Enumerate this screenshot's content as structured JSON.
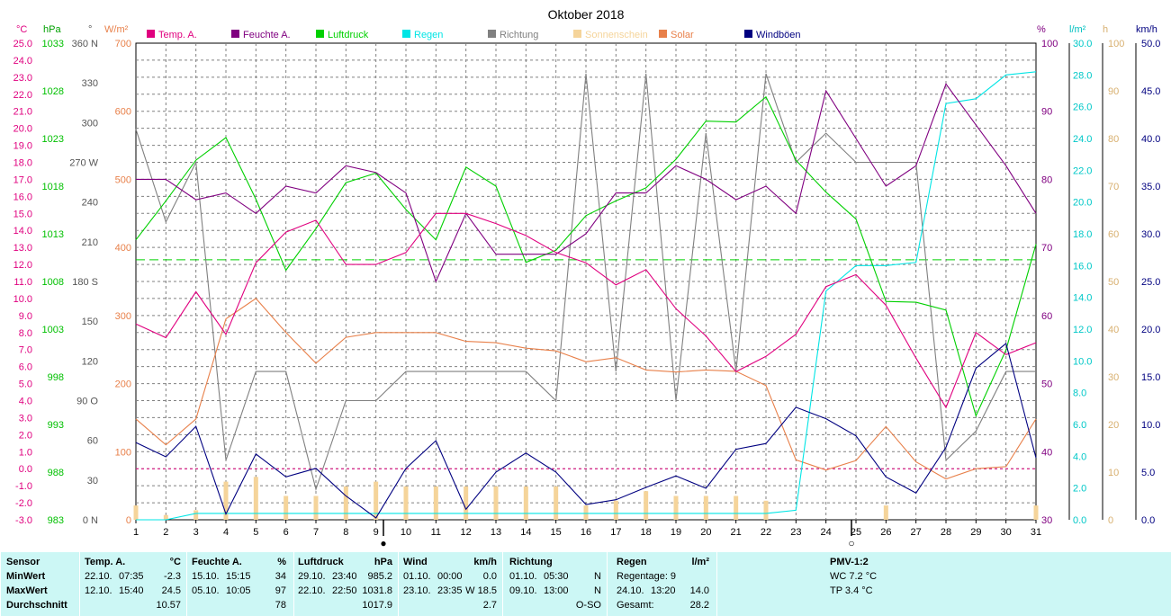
{
  "title": "Oktober 2018",
  "units": {
    "temp": "°C",
    "hpa": "hPa",
    "deg": "°",
    "wm2": "W/m²",
    "pct": "%",
    "lm2": "l/m²",
    "h": "h",
    "kmh": "km/h"
  },
  "legend": [
    {
      "label": "Temp. A.",
      "color": "#e0007f"
    },
    {
      "label": "Feuchte A.",
      "color": "#800080"
    },
    {
      "label": "Luftdruck",
      "color": "#00d000"
    },
    {
      "label": "Regen",
      "color": "#00e5e5"
    },
    {
      "label": "Richtung",
      "color": "#808080"
    },
    {
      "label": "Sonnenschein",
      "color": "#f5d49a"
    },
    {
      "label": "Solar",
      "color": "#e8804a"
    },
    {
      "label": "Windböen",
      "color": "#000080"
    }
  ],
  "colors": {
    "grid": "#808080",
    "axis": "#000000",
    "temp": "#e0007f",
    "humid": "#800080",
    "press": "#00d000",
    "rain": "#00e5e5",
    "dir": "#808080",
    "sun": "#f5d49a",
    "solar": "#e8804a",
    "wind": "#000080"
  },
  "chart_data": {
    "type": "line",
    "x": [
      1,
      2,
      3,
      4,
      5,
      6,
      7,
      8,
      9,
      10,
      11,
      12,
      13,
      14,
      15,
      16,
      17,
      18,
      19,
      20,
      21,
      22,
      23,
      24,
      25,
      26,
      27,
      28,
      29,
      30,
      31
    ],
    "x_ticks": [
      "1",
      "2",
      "3",
      "4",
      "5",
      "6",
      "7",
      "8",
      "9",
      "10",
      "11",
      "12",
      "13",
      "14",
      "15",
      "16",
      "17",
      "18",
      "19",
      "20",
      "21",
      "22",
      "23",
      "24",
      "25",
      "26",
      "27",
      "28",
      "29",
      "30",
      "31"
    ],
    "axes": {
      "temp": {
        "min": -3,
        "max": 25,
        "ticks": [
          "-3.0",
          "-2.0",
          "-1.0",
          "0.0",
          "1.0",
          "2.0",
          "3.0",
          "4.0",
          "5.0",
          "6.0",
          "7.0",
          "8.0",
          "9.0",
          "10.0",
          "11.0",
          "12.0",
          "13.0",
          "14.0",
          "15.0",
          "16.0",
          "17.0",
          "18.0",
          "19.0",
          "20.0",
          "21.0",
          "22.0",
          "23.0",
          "24.0",
          "25.0"
        ]
      },
      "press": {
        "min": 983,
        "max": 1038,
        "ticks": [
          "983",
          "988",
          "993",
          "998",
          "1003",
          "1008",
          "1013",
          "1018",
          "1023",
          "1028",
          "1033"
        ]
      },
      "dir": {
        "min": 0,
        "max": 360,
        "ticks": [
          "0 N",
          "30",
          "60",
          "90 O",
          "120",
          "150",
          "180 S",
          "210",
          "240",
          "270 W",
          "300",
          "330",
          "360 N"
        ]
      },
      "solar": {
        "min": 0,
        "max": 700,
        "ticks": [
          "0",
          "100",
          "200",
          "300",
          "400",
          "500",
          "600",
          "700"
        ]
      },
      "humid": {
        "min": 30,
        "max": 100,
        "ticks": [
          "30",
          "40",
          "50",
          "60",
          "70",
          "80",
          "90",
          "100"
        ]
      },
      "rain": {
        "min": 0,
        "max": 30,
        "ticks": [
          "0.0",
          "2.0",
          "4.0",
          "6.0",
          "8.0",
          "10.0",
          "12.0",
          "14.0",
          "16.0",
          "18.0",
          "20.0",
          "22.0",
          "24.0",
          "26.0",
          "28.0",
          "30.0"
        ]
      },
      "sun": {
        "min": 0,
        "max": 100,
        "ticks": [
          "0",
          "10",
          "20",
          "30",
          "40",
          "50",
          "60",
          "70",
          "80",
          "90",
          "100"
        ]
      },
      "wind": {
        "min": 0,
        "max": 50,
        "ticks": [
          "0.0",
          "5.0",
          "10.0",
          "15.0",
          "20.0",
          "25.0",
          "30.0",
          "35.0",
          "40.0",
          "45.0",
          "50.0"
        ]
      }
    },
    "series": [
      {
        "name": "Temp. A.",
        "axis": "temp",
        "values": [
          8.5,
          7.7,
          10.4,
          7.9,
          12.1,
          13.9,
          14.6,
          12.0,
          12.0,
          12.7,
          15.0,
          15.0,
          14.4,
          13.7,
          12.7,
          12.1,
          10.8,
          11.7,
          9.4,
          7.8,
          5.7,
          6.6,
          7.9,
          10.7,
          11.4,
          9.6,
          6.5,
          3.6,
          8.0,
          6.7,
          7.4
        ]
      },
      {
        "name": "Feuchte A.",
        "axis": "humid",
        "values": [
          80,
          80,
          77,
          78,
          75,
          79,
          78,
          82,
          81,
          78,
          65,
          75,
          69,
          69,
          69,
          72,
          78,
          78,
          82,
          80,
          77,
          79,
          75,
          93,
          86,
          79,
          82,
          94,
          88,
          82,
          75
        ]
      },
      {
        "name": "Luftdruck",
        "axis": "press",
        "values": [
          1015.3,
          1019.8,
          1024.5,
          1027.1,
          1020.0,
          1011.8,
          1016.6,
          1021.9,
          1023.0,
          1018.8,
          1015.3,
          1023.7,
          1021.5,
          1012.7,
          1014.1,
          1018.1,
          1019.8,
          1021.3,
          1024.6,
          1029.0,
          1028.9,
          1031.8,
          1024.5,
          1020.8,
          1017.7,
          1008.2,
          1008.1,
          1007.2,
          995.0,
          1002.6,
          1014.8
        ]
      },
      {
        "name": "Regen",
        "axis": "rain",
        "values": [
          0,
          0,
          0.4,
          0.4,
          0.4,
          0.4,
          0.4,
          0.4,
          0.4,
          0.4,
          0.4,
          0.4,
          0.4,
          0.4,
          0.4,
          0.4,
          0.4,
          0.4,
          0.4,
          0.4,
          0.4,
          0.4,
          0.6,
          14.4,
          16.0,
          16.0,
          16.2,
          26.2,
          26.5,
          28.0,
          28.2
        ]
      },
      {
        "name": "Richtung",
        "axis": "dir",
        "values": [
          295,
          225,
          270,
          45,
          112,
          112,
          23,
          90,
          90,
          112,
          112,
          112,
          112,
          112,
          90,
          337,
          112,
          337,
          90,
          292,
          112,
          337,
          270,
          292,
          270,
          270,
          270,
          45,
          67,
          112,
          112
        ]
      },
      {
        "name": "Sonnenschein",
        "axis": "sun",
        "values": [
          3,
          1,
          2,
          8,
          9,
          5,
          5,
          7,
          8,
          7,
          7,
          7,
          7,
          7,
          7,
          3,
          4,
          6,
          5,
          5,
          5,
          4,
          0,
          0,
          0,
          3,
          0,
          0,
          0,
          0,
          3
        ]
      },
      {
        "name": "Solar",
        "axis": "solar",
        "values": [
          148,
          110,
          148,
          295,
          325,
          275,
          230,
          268,
          275,
          275,
          275,
          262,
          260,
          252,
          248,
          232,
          238,
          220,
          217,
          220,
          218,
          197,
          88,
          73,
          87,
          137,
          85,
          60,
          75,
          78,
          148
        ]
      },
      {
        "name": "Windböen",
        "axis": "wind",
        "values": [
          8.1,
          6.6,
          9.8,
          0.6,
          6.9,
          4.5,
          5.4,
          2.5,
          0.2,
          5.4,
          8.3,
          1.1,
          5.0,
          7.0,
          5.0,
          1.6,
          2.1,
          3.4,
          4.6,
          3.3,
          7.4,
          8.0,
          11.8,
          10.6,
          8.8,
          4.5,
          2.8,
          7.6,
          15.9,
          18.5,
          6.5
        ]
      }
    ],
    "reference_lines": [
      {
        "axis": "press",
        "value": 1013.0,
        "color": "#00d000"
      },
      {
        "axis": "temp",
        "value": 0.0,
        "color": "#e0007f"
      }
    ],
    "moon_markers": [
      {
        "x": 9.25,
        "symbol": "●"
      },
      {
        "x": 24.85,
        "symbol": "○"
      }
    ],
    "grid": true
  },
  "stats": {
    "sensor": {
      "header": "Sensor",
      "rows": [
        "MinWert",
        "MaxWert",
        "Durchschnitt"
      ]
    },
    "temp": {
      "header": "Temp. A.",
      "unit": "°C",
      "min": [
        "22.10.",
        "07:35",
        "-2.3"
      ],
      "max": [
        "12.10.",
        "15:40",
        "24.5"
      ],
      "avg": "10.57"
    },
    "humid": {
      "header": "Feuchte A.",
      "unit": "%",
      "min": [
        "15.10.",
        "15:15",
        "34"
      ],
      "max": [
        "05.10.",
        "10:05",
        "97"
      ],
      "avg": "78"
    },
    "press": {
      "header": "Luftdruck",
      "unit": "hPa",
      "min": [
        "29.10.",
        "23:40",
        "985.2"
      ],
      "max": [
        "22.10.",
        "22:50",
        "1031.8"
      ],
      "avg": "1017.9"
    },
    "wind": {
      "header": "Wind",
      "unit": "km/h",
      "min": [
        "01.10.",
        "00:00",
        "0.0"
      ],
      "max": [
        "23.10.",
        "23:35",
        "W 18.5"
      ],
      "avg": "2.7"
    },
    "dir": {
      "header": "Richtung",
      "min": [
        "01.10.",
        "05:30",
        "N"
      ],
      "max": [
        "09.10.",
        "13:00",
        "N"
      ],
      "avg": "O-SO"
    },
    "rain": {
      "header": "Regen",
      "unit": "l/m²",
      "line1": "Regentage: 9",
      "line2": [
        "24.10.",
        "13:20",
        "14.0"
      ],
      "line3": [
        "Gesamt:",
        "28.2"
      ]
    },
    "pmv": {
      "header": "PMV-1:2",
      "wc": "WC 7.2 °C",
      "tp": "TP 3.4 °C"
    }
  }
}
